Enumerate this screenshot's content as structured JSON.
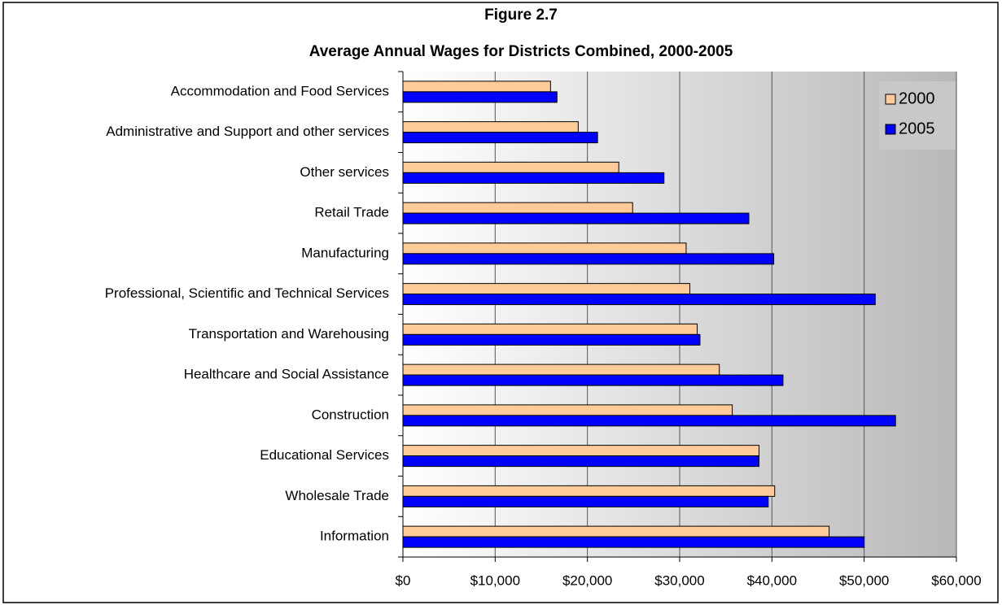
{
  "chart_data": {
    "type": "bar",
    "orientation": "horizontal",
    "title": "Figure 2.7",
    "subtitle": "Average Annual Wages for Districts Combined, 2000-2005",
    "categories": [
      "Accommodation and Food Services",
      "Administrative and Support and other services",
      "Other services",
      "Retail Trade",
      "Manufacturing",
      "Professional, Scientific and Technical Services",
      "Transportation and Warehousing",
      "Healthcare and Social Assistance",
      "Construction",
      "Educational Services",
      "Wholesale Trade",
      "Information"
    ],
    "series": [
      {
        "name": "2000",
        "color": "#ffcc99",
        "values": [
          16000,
          19000,
          23400,
          24900,
          30700,
          31100,
          31900,
          34300,
          35700,
          38600,
          40300,
          46200
        ]
      },
      {
        "name": "2005",
        "color": "#0000ff",
        "values": [
          16700,
          21100,
          28300,
          37500,
          40200,
          51200,
          32200,
          41200,
          53400,
          38600,
          39600,
          50000
        ]
      }
    ],
    "xlim": [
      0,
      60000
    ],
    "xticks": [
      {
        "value": 0,
        "label": "$0"
      },
      {
        "value": 10000,
        "label": "$10,000"
      },
      {
        "value": 20000,
        "label": "$20,000"
      },
      {
        "value": 30000,
        "label": "$30,000"
      },
      {
        "value": 40000,
        "label": "$40,000"
      },
      {
        "value": 50000,
        "label": "$50,000"
      },
      {
        "value": 60000,
        "label": "$60,000"
      }
    ],
    "grid": true,
    "legend": "top-right"
  }
}
